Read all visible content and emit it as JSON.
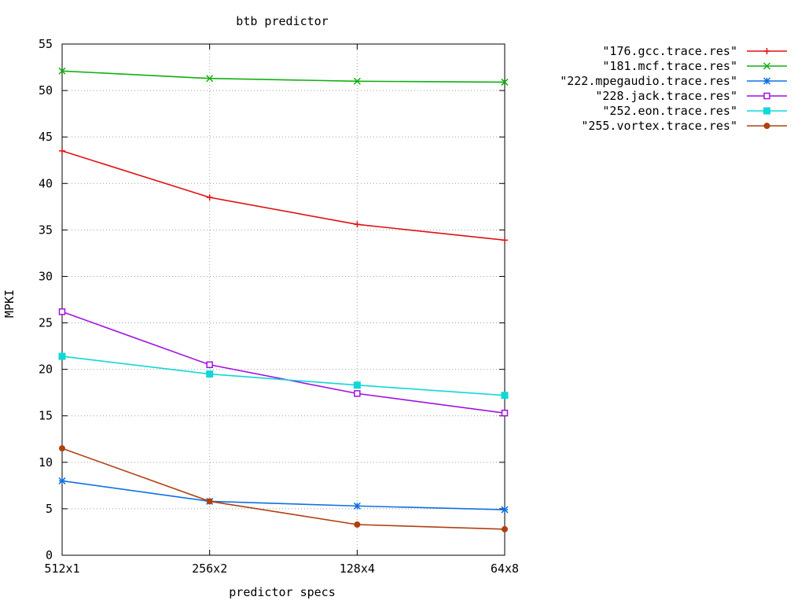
{
  "chart_data": {
    "type": "line",
    "title": "btb predictor",
    "xlabel": "predictor specs",
    "ylabel": "MPKI",
    "categories": [
      "512x1",
      "256x2",
      "128x4",
      "64x8"
    ],
    "ylim": [
      0,
      55
    ],
    "yticks": [
      0,
      5,
      10,
      15,
      20,
      25,
      30,
      35,
      40,
      45,
      50,
      55
    ],
    "grid": true,
    "legend_position": "top-right, outside plot",
    "series": [
      {
        "name": "\"176.gcc.trace.res\"",
        "color": "#e01010",
        "marker": "plus",
        "values": [
          43.5,
          38.5,
          35.6,
          33.9
        ]
      },
      {
        "name": "\"181.mcf.trace.res\"",
        "color": "#10b010",
        "marker": "cross",
        "values": [
          52.1,
          51.3,
          51.0,
          50.9
        ]
      },
      {
        "name": "\"222.mpegaudio.trace.res\"",
        "color": "#1070e0",
        "marker": "star",
        "values": [
          8.0,
          5.8,
          5.3,
          4.9
        ]
      },
      {
        "name": "\"228.jack.trace.res\"",
        "color": "#a010e0",
        "marker": "open-square",
        "values": [
          26.2,
          20.5,
          17.4,
          15.3
        ]
      },
      {
        "name": "\"252.eon.trace.res\"",
        "color": "#10d8d8",
        "marker": "filled-square",
        "values": [
          21.4,
          19.5,
          18.3,
          17.2
        ]
      },
      {
        "name": "\"255.vortex.trace.res\"",
        "color": "#b04010",
        "marker": "filled-circle",
        "values": [
          11.5,
          5.8,
          3.3,
          2.8
        ]
      }
    ]
  }
}
